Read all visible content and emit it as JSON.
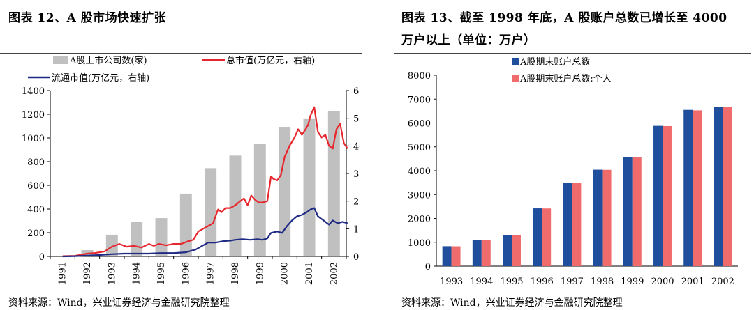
{
  "left": {
    "title": "图表 12、A 股市场快速扩张",
    "source": "资料来源：Wind，兴业证券经济与金融研究院整理",
    "chart_data": {
      "type": "bar",
      "x_labels": [
        "1991",
        "1992",
        "1993",
        "1994",
        "1995",
        "1996",
        "1997",
        "1998",
        "1999",
        "2000",
        "2001",
        "2002"
      ],
      "ylim_left": [
        0,
        1400
      ],
      "yticks_left": [
        0,
        200,
        400,
        600,
        800,
        1000,
        1200,
        1400
      ],
      "ylim_right": [
        0,
        6
      ],
      "yticks_right": [
        0,
        1,
        2,
        3,
        4,
        5,
        6
      ],
      "legend": {
        "bar": "A股上市公司数(家)",
        "line_total": "总市值(万亿元，右轴)",
        "line_float": "流通市值(万亿元，右轴)"
      },
      "colors": {
        "bar": "#c0c0c0",
        "line_total": "#e8262d",
        "line_float": "#1f2a84"
      },
      "bars": [
        {
          "year": 1992,
          "value": 53
        },
        {
          "year": 1993,
          "value": 183
        },
        {
          "year": 1994,
          "value": 291
        },
        {
          "year": 1995,
          "value": 323
        },
        {
          "year": 1996,
          "value": 530
        },
        {
          "year": 1997,
          "value": 745
        },
        {
          "year": 1998,
          "value": 851
        },
        {
          "year": 1999,
          "value": 949
        },
        {
          "year": 2000,
          "value": 1088
        },
        {
          "year": 2001,
          "value": 1160
        },
        {
          "year": 2002,
          "value": 1224
        }
      ],
      "series": [
        {
          "name": "总市值(万亿元，右轴)",
          "axis": "right",
          "x": [
            1991.0,
            1991.5,
            1992.0,
            1992.3,
            1992.7,
            1993.0,
            1993.3,
            1993.6,
            1993.9,
            1994.2,
            1994.5,
            1994.7,
            1994.9,
            1995.2,
            1995.5,
            1995.8,
            1996.1,
            1996.3,
            1996.5,
            1996.7,
            1996.9,
            1997.1,
            1997.3,
            1997.45,
            1997.6,
            1997.8,
            1998.0,
            1998.2,
            1998.35,
            1998.5,
            1998.65,
            1998.8,
            1998.95,
            1999.1,
            1999.3,
            1999.45,
            1999.55,
            1999.7,
            1999.85,
            2000.0,
            2000.2,
            2000.4,
            2000.55,
            2000.7,
            2000.85,
            2000.95,
            2001.05,
            2001.2,
            2001.35,
            2001.5,
            2001.65,
            2001.8,
            2001.95,
            2002.1,
            2002.25,
            2002.4,
            2002.55
          ],
          "y": [
            0.01,
            0.02,
            0.1,
            0.12,
            0.18,
            0.35,
            0.45,
            0.35,
            0.38,
            0.32,
            0.45,
            0.38,
            0.45,
            0.4,
            0.45,
            0.45,
            0.55,
            0.6,
            0.9,
            1.0,
            1.1,
            1.2,
            1.7,
            1.6,
            1.75,
            1.75,
            1.85,
            2.0,
            2.1,
            1.85,
            2.2,
            2.05,
            1.95,
            1.95,
            2.0,
            2.9,
            2.8,
            2.75,
            2.95,
            3.6,
            4.0,
            4.3,
            4.6,
            4.4,
            4.6,
            4.75,
            5.1,
            5.4,
            4.5,
            4.3,
            4.4,
            4.0,
            3.9,
            4.6,
            4.8,
            4.1,
            3.9
          ]
        },
        {
          "name": "流通市值(万亿元，右轴)",
          "axis": "right",
          "x": [
            1991.0,
            1991.5,
            1992.0,
            1992.5,
            1993.0,
            1993.5,
            1994.0,
            1994.5,
            1995.0,
            1995.5,
            1996.0,
            1996.4,
            1996.6,
            1996.9,
            1997.2,
            1997.5,
            1997.8,
            1998.0,
            1998.3,
            1998.6,
            1998.9,
            1999.1,
            1999.3,
            1999.45,
            1999.7,
            1999.9,
            2000.1,
            2000.3,
            2000.5,
            2000.7,
            2000.9,
            2001.05,
            2001.2,
            2001.35,
            2001.5,
            2001.65,
            2001.8,
            2001.95,
            2002.15,
            2002.35,
            2002.55
          ],
          "y": [
            0.0,
            0.01,
            0.03,
            0.05,
            0.08,
            0.1,
            0.1,
            0.1,
            0.12,
            0.12,
            0.15,
            0.25,
            0.35,
            0.5,
            0.5,
            0.55,
            0.57,
            0.6,
            0.62,
            0.6,
            0.62,
            0.6,
            0.65,
            0.85,
            0.9,
            0.85,
            1.1,
            1.3,
            1.45,
            1.5,
            1.6,
            1.7,
            1.75,
            1.45,
            1.35,
            1.25,
            1.15,
            1.3,
            1.2,
            1.25,
            1.2
          ]
        }
      ]
    }
  },
  "right": {
    "title_line1": "图表 13、截至 1998 年底，A 股账户总数已增长至 4000",
    "title_line2": "万户以上（单位：万户）",
    "source": "资料来源：Wind，兴业证券经济与金融研究院整理",
    "chart_data": {
      "type": "bar",
      "categories": [
        "1993",
        "1994",
        "1995",
        "1996",
        "1997",
        "1998",
        "1999",
        "2000",
        "2001",
        "2002"
      ],
      "ylim": [
        0,
        8000
      ],
      "yticks": [
        0,
        1000,
        2000,
        3000,
        4000,
        5000,
        6000,
        7000,
        8000
      ],
      "series": [
        {
          "name": "A股期末账户总数",
          "color": "#1f4e9c",
          "values": [
            835,
            1108,
            1294,
            2422,
            3480,
            4042,
            4582,
            5880,
            6549,
            6682
          ]
        },
        {
          "name": "A股期末账户总数:个人",
          "color": "#f06b6b",
          "values": [
            832,
            1105,
            1290,
            2417,
            3474,
            4036,
            4575,
            5870,
            6528,
            6662
          ]
        }
      ]
    }
  }
}
